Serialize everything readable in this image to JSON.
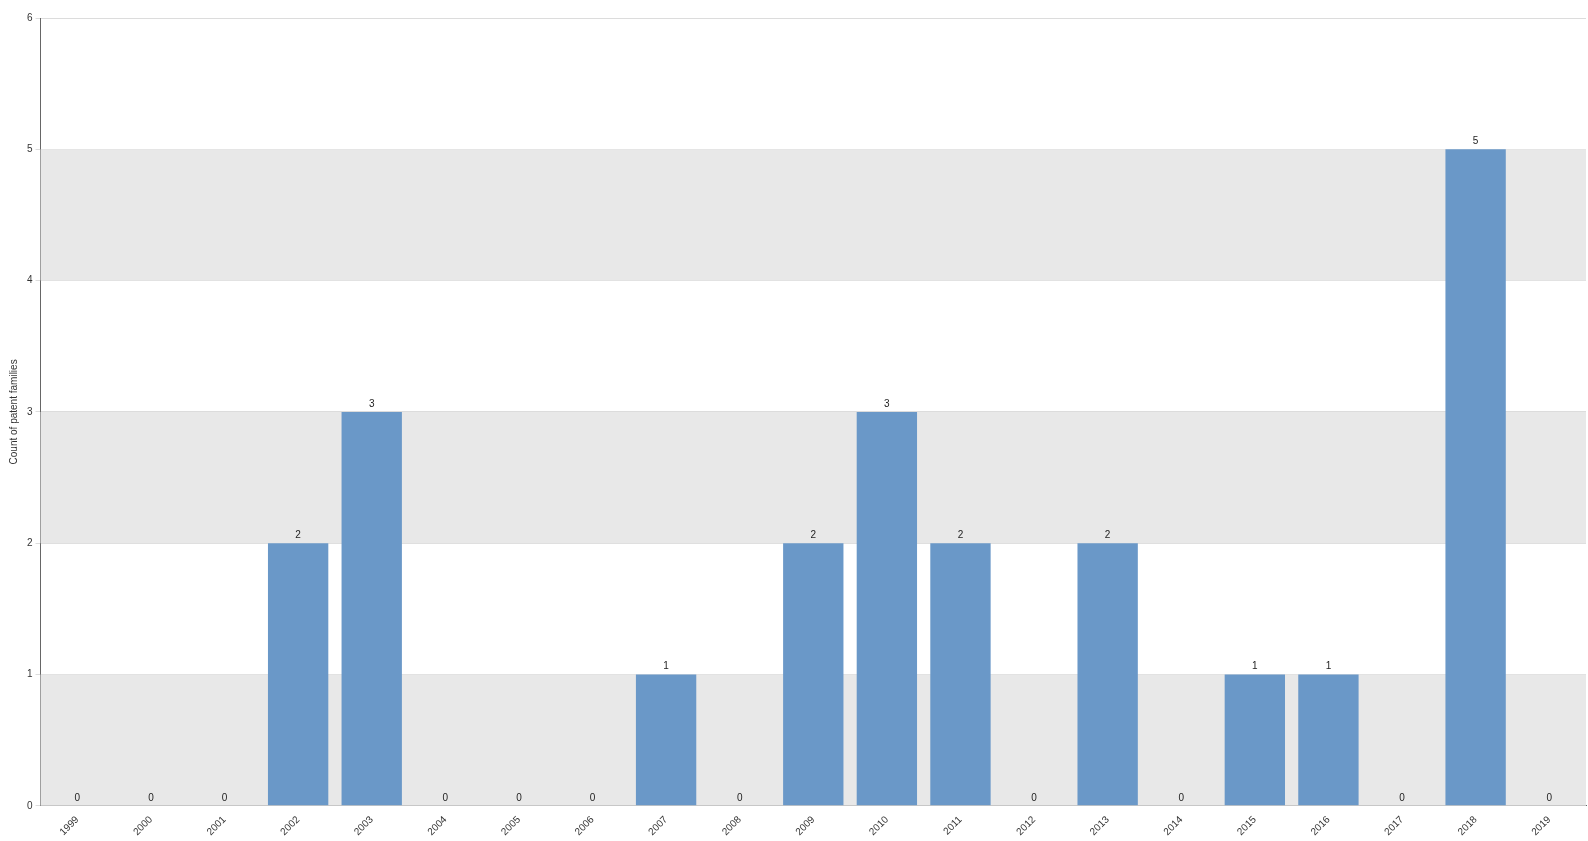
{
  "chart_data": {
    "type": "bar",
    "ylabel": "Count of patent families",
    "categories": [
      "1999",
      "2000",
      "2001",
      "2002",
      "2003",
      "2004",
      "2005",
      "2006",
      "2007",
      "2008",
      "2009",
      "2010",
      "2011",
      "2012",
      "2013",
      "2014",
      "2015",
      "2016",
      "2017",
      "2018",
      "2019"
    ],
    "values": [
      0,
      0,
      0,
      2,
      3,
      0,
      0,
      0,
      1,
      0,
      2,
      3,
      2,
      0,
      2,
      0,
      1,
      1,
      0,
      5,
      0
    ],
    "color": "#6a98c8",
    "ylim": [
      0,
      6
    ],
    "yticks": [
      0,
      1,
      2,
      3,
      4,
      5,
      6
    ],
    "grid": "y",
    "data_labels": true,
    "legend": false
  }
}
